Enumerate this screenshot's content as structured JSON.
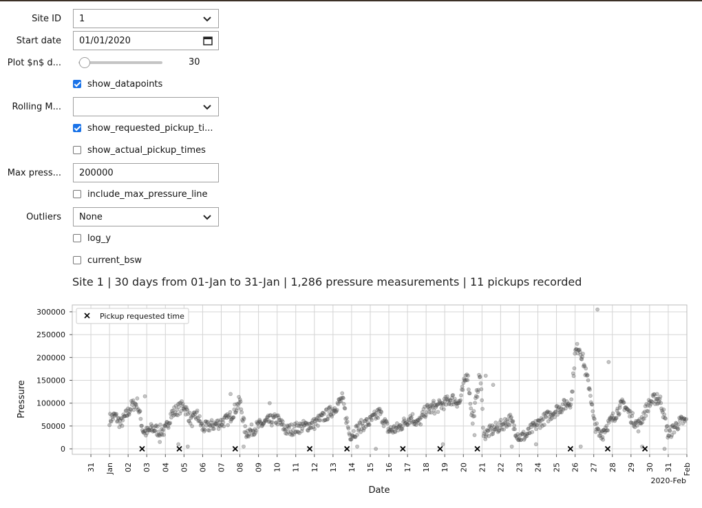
{
  "controls": {
    "site_id": {
      "label": "Site ID",
      "value": "1"
    },
    "start_date": {
      "label": "Start date",
      "value": "01/01/2020"
    },
    "plot_days": {
      "label": "Plot $n$ d...",
      "value": "30",
      "fraction": 0.03
    },
    "show_datapoints": {
      "label": "show_datapoints",
      "checked": true
    },
    "rolling_mean": {
      "label": "Rolling M...",
      "value": ""
    },
    "show_requested": {
      "label": "show_requested_pickup_ti...",
      "checked": true
    },
    "show_actual": {
      "label": "show_actual_pickup_times",
      "checked": false
    },
    "max_pressure": {
      "label": "Max press...",
      "value": "200000"
    },
    "include_max_line": {
      "label": "include_max_pressure_line",
      "checked": false
    },
    "outliers": {
      "label": "Outliers",
      "value": "None"
    },
    "log_y": {
      "label": "log_y",
      "checked": false
    },
    "current_bsw": {
      "label": "current_bsw",
      "checked": false
    }
  },
  "summary": "Site 1 | 30 days from 01-Jan to 31-Jan | 1,286 pressure measurements | 11 pickups recorded",
  "chart_data": {
    "type": "scatter",
    "xlabel": "Date",
    "ylabel": "Pressure",
    "xlim": [
      "2019-12-30",
      "2020-02-01"
    ],
    "ylim": [
      -12000,
      315000
    ],
    "y_ticks": [
      0,
      50000,
      100000,
      150000,
      200000,
      250000,
      300000
    ],
    "y_tick_labels": [
      "0",
      "50000",
      "100000",
      "150000",
      "200000",
      "250000",
      "300000"
    ],
    "x_tick_labels": [
      "31",
      "Jan",
      "02",
      "03",
      "04",
      "05",
      "06",
      "07",
      "08",
      "09",
      "10",
      "11",
      "12",
      "13",
      "14",
      "15",
      "16",
      "17",
      "18",
      "19",
      "20",
      "21",
      "22",
      "23",
      "24",
      "25",
      "26",
      "27",
      "28",
      "29",
      "30",
      "31",
      "Feb"
    ],
    "x_offset_label": "2020-Feb",
    "grid": true,
    "legend": {
      "placement": "top-left",
      "entries": [
        "Pickup requested time"
      ]
    },
    "series": [
      {
        "name": "Pressure measurements",
        "marker": "circle",
        "color": "#555555",
        "profile_days": [
          0,
          0.3,
          0.6,
          1.0,
          1.2,
          1.5,
          1.8,
          2.0,
          2.3,
          2.6,
          3.0,
          3.3,
          3.6,
          4.0,
          4.4,
          4.7,
          5.0,
          5.4,
          5.8,
          6.0,
          6.4,
          6.8,
          7.0,
          7.3,
          7.6,
          8.0,
          8.5,
          9.0,
          9.5,
          10.0,
          10.5,
          11.0,
          11.5,
          12.0,
          12.5,
          12.9,
          13.1,
          13.5,
          14.0,
          14.5,
          15.0,
          15.5,
          15.9,
          16.2,
          16.6,
          17.0,
          17.5,
          18.0,
          18.4,
          18.8,
          19.2,
          19.5,
          19.9,
          20.1,
          20.5,
          21.0,
          21.5,
          22.0,
          22.4,
          22.6,
          23.0,
          23.5,
          24.0,
          24.4,
          24.8,
          25.0,
          25.2,
          25.4,
          25.6,
          25.8,
          26.0,
          26.3,
          26.6,
          27.0,
          27.3,
          27.6,
          28.0,
          28.4,
          28.8,
          29.0,
          29.3,
          29.6,
          30.0,
          30.4,
          30.7
        ],
        "profile_pressure": [
          65000,
          72000,
          55000,
          80000,
          95000,
          100000,
          40000,
          35000,
          45000,
          40000,
          40000,
          75000,
          85000,
          95000,
          60000,
          75000,
          45000,
          50000,
          55000,
          58000,
          65000,
          90000,
          105000,
          35000,
          40000,
          50000,
          60000,
          65000,
          40000,
          45000,
          50000,
          55000,
          70000,
          85000,
          110000,
          30000,
          35000,
          50000,
          60000,
          80000,
          40000,
          45000,
          60000,
          70000,
          55000,
          85000,
          90000,
          100000,
          110000,
          100000,
          170000,
          60000,
          165000,
          30000,
          40000,
          50000,
          65000,
          25000,
          30000,
          40000,
          55000,
          70000,
          85000,
          95000,
          105000,
          210000,
          225000,
          200000,
          160000,
          130000,
          60000,
          30000,
          45000,
          65000,
          85000,
          100000,
          70000,
          50000,
          85000,
          100000,
          110000,
          105000,
          30000,
          50000,
          60000
        ],
        "outliers_days": [
          1.9,
          2.7,
          3.7,
          4.2,
          6.5,
          7.2,
          8.6,
          11.8,
          13.3,
          14.3,
          17.4,
          17.9,
          19.6,
          20.2,
          20.6,
          21.6,
          22.9,
          25.3,
          26.2,
          26.5,
          26.8,
          27.4,
          28.6,
          29.4,
          29.8
        ],
        "outliers_pressure": [
          115000,
          15000,
          10000,
          5000,
          120000,
          5000,
          100000,
          80000,
          5000,
          0,
          105000,
          10000,
          30000,
          160000,
          140000,
          5000,
          10000,
          5000,
          305000,
          20000,
          190000,
          90000,
          5000,
          120000,
          0
        ]
      },
      {
        "name": "Pickup requested time",
        "marker": "x",
        "color": "#000000",
        "days": [
          1.75,
          3.75,
          6.75,
          10.75,
          12.75,
          15.75,
          17.75,
          19.75,
          24.75,
          26.75,
          28.75
        ],
        "values": [
          0,
          0,
          0,
          0,
          0,
          0,
          0,
          0,
          0,
          0,
          0
        ]
      }
    ]
  }
}
